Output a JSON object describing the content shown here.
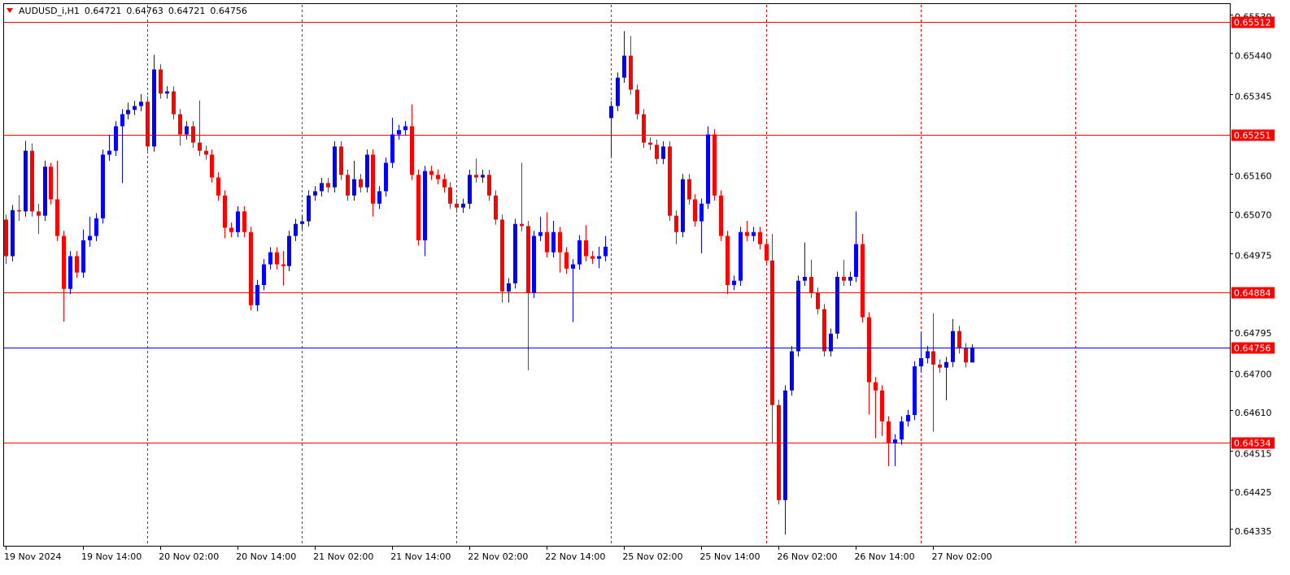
{
  "chart_data": {
    "type": "candlestick",
    "title": "AUDUSD_i,H1",
    "up_color": "#0000ff",
    "down_color": "#ff0000",
    "separator_color": "#ff0000",
    "price_line_color": "#0000ff",
    "ylim": [
      0.64295,
      0.65554
    ],
    "yticks": [
      {
        "value": 0.6553,
        "label": "0.65530"
      },
      {
        "value": 0.6544,
        "label": "0.65440"
      },
      0.65345,
      {
        "value": 0.6516,
        "label": "0.65160"
      },
      {
        "value": 0.6507,
        "label": "0.65070"
      },
      0.64975,
      0.64795,
      {
        "value": 0.647,
        "label": "0.64700"
      },
      {
        "value": 0.6461,
        "label": "0.64610"
      },
      0.64515,
      0.64425,
      0.64335
    ],
    "hlines": [
      {
        "value": 0.65512,
        "color": "#ff0000"
      },
      {
        "value": 0.65251,
        "color": "#ff0000"
      },
      {
        "value": 0.64884,
        "color": "#ff0000"
      },
      {
        "value": 0.64534,
        "color": "#ff0000"
      }
    ],
    "x": [
      "19 Nov 2024",
      null,
      null,
      null,
      null,
      null,
      null,
      null,
      null,
      null,
      null,
      null,
      "19 Nov 14:00",
      null,
      null,
      null,
      null,
      null,
      null,
      null,
      null,
      null,
      null,
      null,
      "20 Nov 02:00",
      null,
      null,
      null,
      null,
      null,
      null,
      null,
      null,
      null,
      null,
      null,
      "20 Nov 14:00",
      null,
      null,
      null,
      null,
      null,
      null,
      null,
      null,
      null,
      null,
      null,
      "21 Nov 02:00",
      null,
      null,
      null,
      null,
      null,
      null,
      null,
      null,
      null,
      null,
      null,
      "21 Nov 14:00",
      null,
      null,
      null,
      null,
      null,
      null,
      null,
      null,
      null,
      null,
      null,
      "22 Nov 02:00",
      null,
      null,
      null,
      null,
      null,
      null,
      null,
      null,
      null,
      null,
      null,
      "22 Nov 14:00",
      null,
      null,
      null,
      null,
      null,
      null,
      null,
      null,
      null,
      null,
      null,
      "25 Nov 02:00",
      null,
      null,
      null,
      null,
      null,
      null,
      null,
      null,
      null,
      null,
      null,
      "25 Nov 14:00",
      null,
      null,
      null,
      null,
      null,
      null,
      null,
      null,
      null,
      null,
      null,
      "26 Nov 02:00",
      null,
      null,
      null,
      null,
      null,
      null,
      null,
      null,
      null,
      null,
      null,
      "26 Nov 14:00",
      null,
      null,
      null,
      null,
      null,
      null,
      null,
      null,
      null,
      null,
      null,
      "27 Nov 02:00",
      null,
      null,
      null,
      null,
      null,
      null
    ],
    "open": [
      0.65053,
      0.64968,
      0.65075,
      0.65072,
      0.65213,
      0.65072,
      0.65062,
      0.65176,
      0.651,
      0.65015,
      0.64892,
      0.64968,
      0.6493,
      0.65005,
      0.65015,
      0.65056,
      0.65204,
      0.65213,
      0.6527,
      0.65298,
      0.65308,
      0.65317,
      0.65327,
      0.65223,
      0.65402,
      0.65346,
      0.65351,
      0.65298,
      0.65251,
      0.6527,
      0.65232,
      0.65213,
      0.65204,
      0.65151,
      0.65109,
      0.65034,
      0.65024,
      0.65072,
      0.65024,
      0.64854,
      0.64901,
      0.64949,
      0.64977,
      0.64949,
      0.64945,
      0.65015,
      0.65043,
      0.65049,
      0.65109,
      0.65119,
      0.65138,
      0.65128,
      0.65223,
      0.65157,
      0.65109,
      0.65147,
      0.65128,
      0.65204,
      0.6509,
      0.65119,
      0.65185,
      0.65251,
      0.65261,
      0.6527,
      0.65157,
      0.65005,
      0.65166,
      0.65157,
      0.65147,
      0.65128,
      0.6509,
      0.65081,
      0.6509,
      0.65157,
      0.65151,
      0.65157,
      0.65109,
      0.65053,
      0.64886,
      0.64905,
      0.65043,
      0.65038,
      0.64883,
      0.65015,
      0.65024,
      0.64977,
      0.65024,
      0.64977,
      0.64939,
      0.64949,
      0.65005,
      0.64968,
      0.64962,
      0.64968,
      0.65289,
      0.65317,
      0.65383,
      0.65434,
      0.65355,
      0.65298,
      0.65232,
      0.65227,
      0.65194,
      0.65223,
      0.65062,
      0.65024,
      0.65147,
      0.651,
      0.65049,
      0.6509,
      0.65251,
      0.65109,
      0.65015,
      0.64901,
      0.64911,
      0.65024,
      0.65015,
      0.65024,
      0.64996,
      0.64958,
      0.64622,
      0.64401,
      0.64656,
      0.64747,
      0.64911,
      0.6492,
      0.64883,
      0.64845,
      0.64747,
      0.64788,
      0.6492,
      0.64911,
      0.6492,
      0.64996,
      0.64826,
      0.64675,
      0.64656,
      0.64584,
      0.64533,
      0.64542,
      0.64584,
      0.64599,
      0.64712,
      0.64731,
      0.64747,
      0.64716,
      0.64709,
      0.64722,
      0.64794,
      0.64754,
      0.64721
    ],
    "high": [
      0.65065,
      0.65087,
      0.6511,
      0.65236,
      0.6523,
      0.6509,
      0.6519,
      0.65185,
      0.6519,
      0.65027,
      0.6498,
      0.6498,
      0.6503,
      0.6506,
      0.65068,
      0.65216,
      0.6525,
      0.65282,
      0.6531,
      0.65325,
      0.65329,
      0.65345,
      0.65339,
      0.65436,
      0.65414,
      0.65363,
      0.65363,
      0.6531,
      0.65282,
      0.65282,
      0.6533,
      0.65225,
      0.65216,
      0.65163,
      0.65121,
      0.65046,
      0.65084,
      0.65084,
      0.65036,
      0.64913,
      0.64961,
      0.64989,
      0.64989,
      0.6498,
      0.65027,
      0.65055,
      0.65061,
      0.65121,
      0.65131,
      0.6515,
      0.6515,
      0.65235,
      0.65235,
      0.65169,
      0.6519,
      0.65159,
      0.65216,
      0.65216,
      0.65131,
      0.65197,
      0.6529,
      0.65273,
      0.65282,
      0.65321,
      0.65169,
      0.65178,
      0.65178,
      0.65169,
      0.65159,
      0.6514,
      0.65102,
      0.65102,
      0.65169,
      0.65195,
      0.65169,
      0.65169,
      0.65121,
      0.65065,
      0.64917,
      0.65055,
      0.65185,
      0.6505,
      0.65027,
      0.6506,
      0.6507,
      0.6505,
      0.65036,
      0.64989,
      0.64961,
      0.65017,
      0.6504,
      0.6498,
      0.6499,
      0.65015,
      0.65329,
      0.65395,
      0.65491,
      0.6548,
      0.65367,
      0.6531,
      0.65244,
      0.65239,
      0.65235,
      0.65235,
      0.65074,
      0.65159,
      0.65159,
      0.65112,
      0.65102,
      0.6527,
      0.65263,
      0.65121,
      0.65027,
      0.64923,
      0.65036,
      0.6505,
      0.65036,
      0.65036,
      0.65008,
      0.6502,
      0.64634,
      0.64668,
      0.64759,
      0.64923,
      0.65,
      0.6496,
      0.64895,
      0.64857,
      0.648,
      0.64932,
      0.6496,
      0.64932,
      0.65072,
      0.6502,
      0.64838,
      0.64687,
      0.64668,
      0.64596,
      0.64554,
      0.64596,
      0.64611,
      0.64724,
      0.6479,
      0.64759,
      0.64835,
      0.64728,
      0.64734,
      0.64822,
      0.64806,
      0.64766,
      0.64763
    ],
    "low": [
      0.6495,
      0.64956,
      0.6505,
      0.6506,
      0.6506,
      0.6502,
      0.6505,
      0.65088,
      0.65003,
      0.64816,
      0.6488,
      0.64918,
      0.64918,
      0.6499,
      0.65003,
      0.65044,
      0.6519,
      0.65201,
      0.65138,
      0.65286,
      0.65296,
      0.65305,
      0.65211,
      0.65211,
      0.65334,
      0.65334,
      0.65286,
      0.65225,
      0.65239,
      0.6522,
      0.65201,
      0.65192,
      0.65139,
      0.65097,
      0.6501,
      0.65012,
      0.65012,
      0.65012,
      0.64842,
      0.6484,
      0.64889,
      0.64937,
      0.64937,
      0.649,
      0.64933,
      0.65003,
      0.65031,
      0.65037,
      0.65097,
      0.65107,
      0.65116,
      0.65116,
      0.65145,
      0.65097,
      0.65097,
      0.65116,
      0.65116,
      0.6506,
      0.65078,
      0.65107,
      0.65173,
      0.65239,
      0.65249,
      0.65145,
      0.64993,
      0.64968,
      0.65145,
      0.65135,
      0.65116,
      0.65078,
      0.65069,
      0.65069,
      0.65078,
      0.65139,
      0.65139,
      0.65097,
      0.65041,
      0.6486,
      0.6486,
      0.64893,
      0.65026,
      0.64703,
      0.64871,
      0.65003,
      0.64965,
      0.64965,
      0.6493,
      0.64927,
      0.64815,
      0.64937,
      0.64956,
      0.6495,
      0.6494,
      0.64956,
      0.652,
      0.65305,
      0.65371,
      0.65343,
      0.65286,
      0.6522,
      0.65215,
      0.65182,
      0.65182,
      0.6505,
      0.64996,
      0.65012,
      0.65088,
      0.65037,
      0.64975,
      0.65078,
      0.65097,
      0.65003,
      0.6488,
      0.64889,
      0.64899,
      0.65003,
      0.65003,
      0.64984,
      0.64946,
      0.64533,
      0.64391,
      0.64321,
      0.64644,
      0.64735,
      0.64899,
      0.64871,
      0.64833,
      0.64735,
      0.64735,
      0.64776,
      0.64899,
      0.64899,
      0.64908,
      0.64814,
      0.646,
      0.64545,
      0.6455,
      0.6448,
      0.6448,
      0.6453,
      0.64572,
      0.64587,
      0.647,
      0.64719,
      0.6456,
      0.64697,
      0.64633,
      0.6471,
      0.64742,
      0.64709,
      0.64721
    ],
    "close": [
      0.64968,
      0.65075,
      0.65072,
      0.65213,
      0.65072,
      0.65062,
      0.65176,
      0.651,
      0.65015,
      0.64892,
      0.64968,
      0.6493,
      0.65005,
      0.65015,
      0.65056,
      0.65204,
      0.65213,
      0.6527,
      0.65298,
      0.65308,
      0.65317,
      0.65327,
      0.65223,
      0.65402,
      0.65346,
      0.65351,
      0.65298,
      0.65251,
      0.6527,
      0.65232,
      0.65213,
      0.65204,
      0.65151,
      0.65109,
      0.65034,
      0.65024,
      0.65072,
      0.65024,
      0.64854,
      0.64901,
      0.64949,
      0.64977,
      0.64949,
      0.64945,
      0.65015,
      0.65043,
      0.65049,
      0.65109,
      0.65119,
      0.65138,
      0.65128,
      0.65223,
      0.65157,
      0.65109,
      0.65147,
      0.65128,
      0.65204,
      0.6509,
      0.65119,
      0.65185,
      0.65251,
      0.65261,
      0.6527,
      0.65157,
      0.65005,
      0.65166,
      0.65157,
      0.65147,
      0.65128,
      0.6509,
      0.65081,
      0.6509,
      0.65157,
      0.65151,
      0.65157,
      0.65109,
      0.65053,
      0.64886,
      0.64905,
      0.65043,
      0.65038,
      0.64883,
      0.65015,
      0.65024,
      0.64977,
      0.65024,
      0.64977,
      0.64939,
      0.64949,
      0.65005,
      0.64968,
      0.64962,
      0.64968,
      0.6499,
      0.65317,
      0.65383,
      0.65434,
      0.65355,
      0.65298,
      0.65232,
      0.65227,
      0.65194,
      0.65223,
      0.65062,
      0.65024,
      0.65147,
      0.651,
      0.65049,
      0.6509,
      0.65251,
      0.65109,
      0.65015,
      0.64901,
      0.64911,
      0.65024,
      0.65015,
      0.65024,
      0.64996,
      0.64958,
      0.64622,
      0.64401,
      0.64656,
      0.64747,
      0.64911,
      0.6492,
      0.64883,
      0.64845,
      0.64747,
      0.64788,
      0.6492,
      0.64911,
      0.6492,
      0.64996,
      0.64826,
      0.64675,
      0.64656,
      0.64584,
      0.64533,
      0.64542,
      0.64584,
      0.64599,
      0.64712,
      0.64731,
      0.64747,
      0.64716,
      0.64709,
      0.64722,
      0.64794,
      0.64754,
      0.64721,
      0.64756
    ]
  }
}
